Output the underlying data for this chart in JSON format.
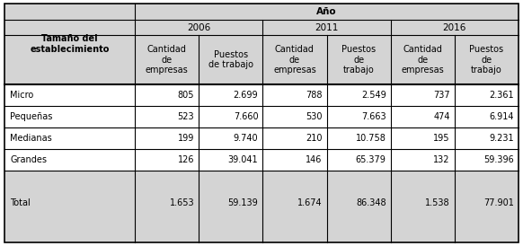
{
  "rows": [
    [
      "Micro",
      "805",
      "2.699",
      "788",
      "2.549",
      "737",
      "2.361"
    ],
    [
      "Pequeñas",
      "523",
      "7.660",
      "530",
      "7.663",
      "474",
      "6.914"
    ],
    [
      "Medianas",
      "199",
      "9.740",
      "210",
      "10.758",
      "195",
      "9.231"
    ],
    [
      "Grandes",
      "126",
      "39.041",
      "146",
      "65.379",
      "132",
      "59.396"
    ],
    [
      "Total",
      "1.653",
      "59.139",
      "1.674",
      "86.348",
      "1.538",
      "77.901"
    ]
  ],
  "year_labels": [
    "2006",
    "2011",
    "2016"
  ],
  "sub_headers": [
    "Cantidad\nde\nempresas",
    "Puestos\nde trabajo",
    "Cantidad\nde\nempresas",
    "Puestos\nde\ntrabajo",
    "Cantidad\nde\nempresas",
    "Puestos\nde\ntrabajo"
  ],
  "row_header": "Tamaño del\nestablecimiento",
  "ano_label": "Año",
  "bg_header": "#d4d4d4",
  "bg_total": "#d4d4d4",
  "bg_white": "#ffffff",
  "bg_light": "#efefef",
  "border_color": "#000000",
  "text_color": "#000000",
  "figsize": [
    5.82,
    2.74
  ],
  "dpi": 100
}
